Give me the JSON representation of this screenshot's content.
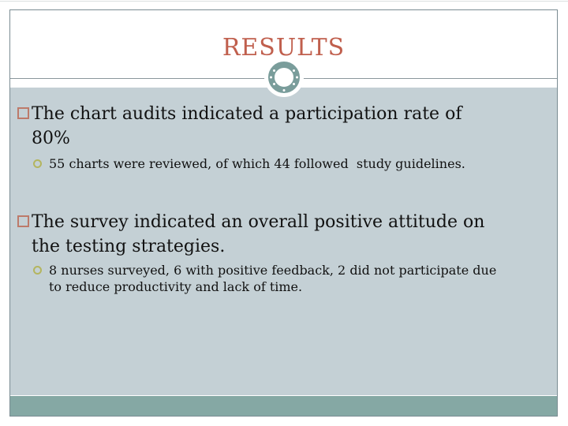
{
  "slide": {
    "title": "RESULTS",
    "bullets": [
      {
        "lines": [
          "The chart audits indicated a participation rate of",
          "80%"
        ],
        "sub": [
          {
            "lines": [
              "55 charts were reviewed, of which 44 followed  study guidelines."
            ]
          }
        ]
      },
      {
        "lines": [
          "The survey indicated an overall positive attitude on",
          "the testing strategies."
        ],
        "sub": [
          {
            "lines": [
              "8 nurses surveyed, 6 with positive feedback, 2 did not participate due",
              "to reduce productivity and lack of time."
            ]
          }
        ]
      }
    ]
  },
  "colors": {
    "title": "#c05f4d",
    "content-bg": "#c4d0d5",
    "footer-bar": "#85a8a4",
    "frame-border": "#7a8c92",
    "ring": "#7a9d9b",
    "bullet-square": "#bd7a6a",
    "bullet-circle": "#b4b55f",
    "text": "#111111"
  }
}
